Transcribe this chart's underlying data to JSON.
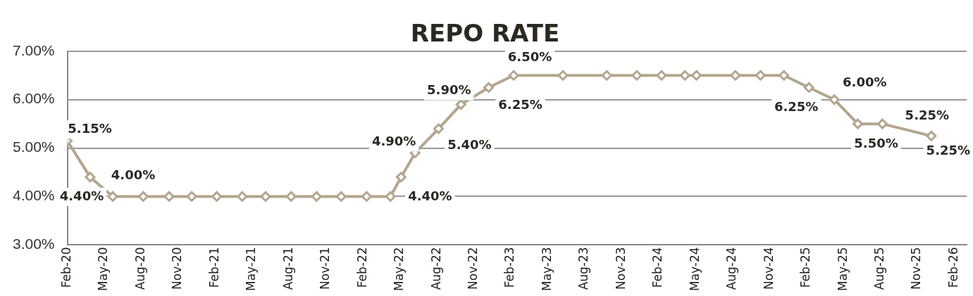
{
  "chart_data": {
    "type": "line",
    "title": "REPO RATE",
    "x": [
      "2020-02",
      "2020-03-27",
      "2020-05-22",
      "2020-08-06",
      "2020-10-09",
      "2020-12-04",
      "2021-02-05",
      "2021-04-07",
      "2021-06-04",
      "2021-08-06",
      "2021-10-08",
      "2021-12-08",
      "2022-02-10",
      "2022-04-08",
      "2022-05-04",
      "2022-06-08",
      "2022-08-05",
      "2022-09-30",
      "2022-12-07",
      "2023-02-08",
      "2023-06-08",
      "2023-09-25",
      "2023-12-08",
      "2024-02-08",
      "2024-04-05",
      "2024-05-03",
      "2024-08-08",
      "2024-10-09",
      "2024-12-06",
      "2025-02-07",
      "2025-04-09",
      "2025-06-06",
      "2025-08-06",
      "2025-12-05"
    ],
    "series": [
      {
        "color": "#b3a58f",
        "values": [
          5.15,
          4.4,
          4.0,
          4.0,
          4.0,
          4.0,
          4.0,
          4.0,
          4.0,
          4.0,
          4.0,
          4.0,
          4.0,
          4.0,
          4.4,
          4.9,
          5.4,
          5.9,
          6.25,
          6.5,
          6.5,
          6.5,
          6.5,
          6.5,
          6.5,
          6.5,
          6.5,
          6.5,
          6.5,
          6.25,
          6.0,
          5.5,
          5.5,
          5.25
        ],
        "value_labels": [
          "5.15%",
          "4.40%",
          "4.00%",
          null,
          null,
          null,
          null,
          null,
          null,
          null,
          null,
          null,
          null,
          null,
          "4.40%",
          "4.90%",
          "5.40%",
          "5.90%",
          "6.25%",
          "6.50%",
          null,
          null,
          null,
          null,
          null,
          null,
          null,
          null,
          null,
          "6.25%",
          "6.00%",
          "5.50%",
          null,
          "5.25%"
        ]
      }
    ],
    "annotations": [
      {
        "text": "5.25%",
        "x": "2025-12-05",
        "y": 5.25
      }
    ],
    "ylim": [
      3,
      7
    ],
    "yticks": [
      {
        "value": 3,
        "label": "3.00%"
      },
      {
        "value": 4,
        "label": "4.00%"
      },
      {
        "value": 5,
        "label": "5.00%"
      },
      {
        "value": 6,
        "label": "6.00%"
      },
      {
        "value": 7,
        "label": "7.00%"
      }
    ],
    "xlim": [
      "2020-02",
      "2026-03"
    ],
    "xticks": [
      {
        "value": "2020-02",
        "label": "Feb-20"
      },
      {
        "value": "2020-05",
        "label": "May-20"
      },
      {
        "value": "2020-08",
        "label": "Aug-20"
      },
      {
        "value": "2020-11",
        "label": "Nov-20"
      },
      {
        "value": "2021-02",
        "label": "Feb-21"
      },
      {
        "value": "2021-05",
        "label": "May-21"
      },
      {
        "value": "2021-08",
        "label": "Aug-21"
      },
      {
        "value": "2021-11",
        "label": "Nov-21"
      },
      {
        "value": "2022-02",
        "label": "Feb-22"
      },
      {
        "value": "2022-05",
        "label": "May-22"
      },
      {
        "value": "2022-08",
        "label": "Aug-22"
      },
      {
        "value": "2022-11",
        "label": "Nov-22"
      },
      {
        "value": "2023-02",
        "label": "Feb-23"
      },
      {
        "value": "2023-05",
        "label": "May-23"
      },
      {
        "value": "2023-08",
        "label": "Aug-23"
      },
      {
        "value": "2023-11",
        "label": "Nov-23"
      },
      {
        "value": "2024-02",
        "label": "Feb-24"
      },
      {
        "value": "2024-05",
        "label": "May-24"
      },
      {
        "value": "2024-08",
        "label": "Aug-24"
      },
      {
        "value": "2024-11",
        "label": "Nov-24"
      },
      {
        "value": "2025-02",
        "label": "Feb-25"
      },
      {
        "value": "2025-05",
        "label": "May-25"
      },
      {
        "value": "2025-08",
        "label": "Aug-25"
      },
      {
        "value": "2025-11",
        "label": "Nov-25"
      },
      {
        "value": "2026-02",
        "label": "Feb-26"
      }
    ],
    "grid": "y",
    "legend": false,
    "marker": "diamond",
    "line_style": "solid"
  }
}
